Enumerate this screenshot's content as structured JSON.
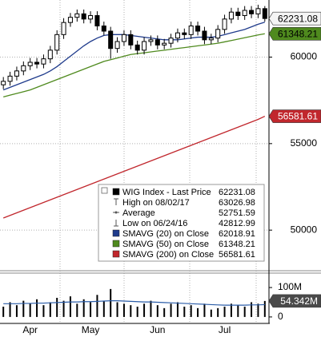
{
  "chart_data": {
    "type": "candlestick",
    "categories": [
      null,
      null,
      null,
      null,
      "Apr",
      null,
      null,
      null,
      null,
      null,
      null,
      null,
      null,
      "May",
      null,
      null,
      null,
      null,
      null,
      null,
      null,
      null,
      null,
      "Jun",
      null,
      null,
      null,
      null,
      null,
      null,
      null,
      null,
      null,
      "Jul",
      null,
      null,
      null,
      null,
      null,
      null
    ],
    "ylim": [
      47700,
      63300
    ],
    "yticks": [
      50000,
      55000,
      60000
    ],
    "grid": true,
    "price": {
      "name": "WIG Index - Last Price",
      "last_label": "62231.08",
      "color": "#000000",
      "up_fill": "#ffffff",
      "down_fill": "#000000",
      "tag_fill": "#f4f4f4",
      "tag_text_color": "#000000",
      "open": [
        58400,
        58600,
        58900,
        59200,
        59500,
        59700,
        59600,
        59900,
        60400,
        61300,
        62000,
        62300,
        62500,
        62200,
        62400,
        61800,
        61500,
        60500,
        60900,
        61300,
        60700,
        60400,
        60900,
        61000,
        60700,
        60800,
        61100,
        61400,
        61300,
        61800,
        61500,
        61000,
        61100,
        61600,
        62200,
        62600,
        62400,
        62700,
        62500,
        62800
      ],
      "high": [
        58850,
        59150,
        59450,
        59750,
        59950,
        59950,
        60150,
        60650,
        61550,
        62250,
        62550,
        62750,
        62750,
        62650,
        62650,
        62050,
        61750,
        61150,
        61550,
        61550,
        60950,
        61150,
        61250,
        61250,
        61050,
        61350,
        61650,
        61650,
        62050,
        62050,
        61750,
        61350,
        61850,
        62450,
        62850,
        62850,
        62950,
        62950,
        63026.98,
        62950
      ],
      "low": [
        58150,
        58350,
        58650,
        58950,
        59250,
        59350,
        59350,
        59650,
        60150,
        61050,
        61750,
        62050,
        61950,
        61950,
        61550,
        61250,
        59900,
        60250,
        60650,
        60450,
        60150,
        60150,
        60650,
        60450,
        60450,
        60550,
        60850,
        61050,
        61050,
        61250,
        60750,
        60750,
        60850,
        61350,
        61950,
        62150,
        62150,
        62250,
        62250,
        62050
      ],
      "close": [
        58600,
        58900,
        59200,
        59500,
        59700,
        59600,
        59900,
        60400,
        61300,
        62000,
        62300,
        62500,
        62200,
        62400,
        61800,
        61500,
        60500,
        60900,
        61300,
        60700,
        60400,
        60900,
        61000,
        60700,
        60800,
        61100,
        61400,
        61300,
        61800,
        61500,
        61000,
        61100,
        61600,
        62200,
        62600,
        62400,
        62700,
        62500,
        62800,
        62231.08
      ]
    },
    "stats": [
      {
        "name": "High on 08/02/17",
        "value": "63026.98"
      },
      {
        "name": "Average",
        "value": "52751.59"
      },
      {
        "name": "Low on 06/24/16",
        "value": "42812.99"
      }
    ],
    "lines": [
      {
        "name": "SMAVG (20) on Close",
        "last_label": "62018.91",
        "color": "#1f3b8c",
        "tag": false,
        "values": [
          58100,
          58250,
          58400,
          58550,
          58700,
          58850,
          59000,
          59200,
          59450,
          59750,
          60050,
          60350,
          60650,
          60900,
          61100,
          61250,
          61300,
          61300,
          61300,
          61250,
          61200,
          61150,
          61100,
          61050,
          61000,
          61000,
          61000,
          61050,
          61100,
          61150,
          61150,
          61150,
          61200,
          61300,
          61400,
          61500,
          61600,
          61750,
          61900,
          62018.91
        ]
      },
      {
        "name": "SMAVG (50) on Close",
        "last_label": "61348.21",
        "color": "#4f8a1e",
        "tag": true,
        "tag_text_color": "#000000",
        "values": [
          57700,
          57800,
          57900,
          58000,
          58100,
          58250,
          58400,
          58550,
          58700,
          58850,
          59000,
          59150,
          59300,
          59450,
          59600,
          59750,
          59850,
          59950,
          60050,
          60150,
          60200,
          60250,
          60300,
          60350,
          60400,
          60450,
          60500,
          60550,
          60600,
          60650,
          60700,
          60750,
          60800,
          60880,
          60960,
          61040,
          61120,
          61200,
          61280,
          61348.21
        ]
      },
      {
        "name": "SMAVG (200) on Close",
        "last_label": "56581.61",
        "color": "#c1272d",
        "tag": true,
        "tag_text_color": "#ffffff",
        "values": [
          50700,
          50850,
          51000,
          51150,
          51300,
          51450,
          51600,
          51750,
          51900,
          52050,
          52200,
          52350,
          52500,
          52650,
          52800,
          52950,
          53100,
          53250,
          53400,
          53550,
          53700,
          53850,
          54000,
          54150,
          54300,
          54450,
          54600,
          54750,
          54900,
          55050,
          55200,
          55350,
          55500,
          55650,
          55800,
          55950,
          56100,
          56250,
          56400,
          56581.61
        ]
      }
    ],
    "volume": {
      "ylim": [
        -22,
        149
      ],
      "yticks": [
        {
          "value": 100,
          "label": "100M"
        },
        0
      ],
      "color": "#000000",
      "avg_color": "#2a5ca8",
      "tag_fill": "#4a4a4a",
      "tag_text_color": "#ffffff",
      "last_label": "54.342M",
      "values": [
        35,
        50,
        40,
        55,
        45,
        60,
        40,
        50,
        65,
        55,
        70,
        45,
        60,
        50,
        75,
        55,
        95,
        50,
        45,
        40,
        35,
        45,
        55,
        40,
        30,
        45,
        50,
        35,
        40,
        30,
        45,
        25,
        30,
        35,
        45,
        40,
        35,
        50,
        45,
        54.342
      ],
      "avg": [
        45,
        45,
        45,
        46,
        46,
        47,
        47,
        48,
        49,
        50,
        51,
        51,
        52,
        52,
        53,
        54,
        55,
        55,
        54,
        53,
        52,
        51,
        51,
        50,
        49,
        48,
        47,
        46,
        45,
        44,
        43,
        42,
        41,
        40,
        40,
        40,
        40,
        41,
        41,
        42
      ]
    }
  }
}
